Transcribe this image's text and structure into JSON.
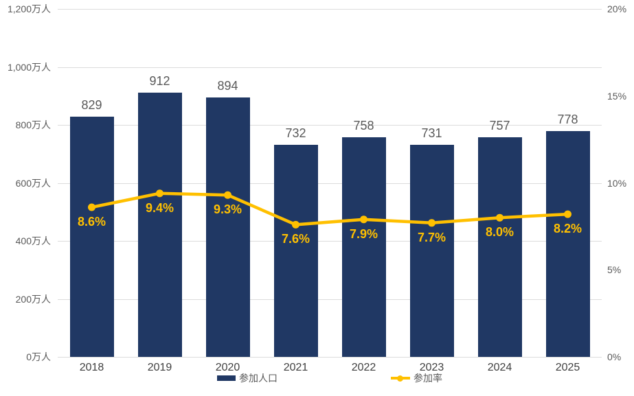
{
  "chart_data": {
    "type": "combo-bar-line",
    "categories": [
      "2018",
      "2019",
      "2020",
      "2021",
      "2022",
      "2023",
      "2024",
      "2025"
    ],
    "series": [
      {
        "name": "参加人口",
        "type": "bar",
        "color": "#203864",
        "axis": "left",
        "unit": "万人",
        "values": [
          829,
          912,
          894,
          732,
          758,
          731,
          757,
          778
        ]
      },
      {
        "name": "参加率",
        "type": "line",
        "color": "#FFC000",
        "axis": "right",
        "unit": "%",
        "values": [
          8.6,
          9.4,
          9.3,
          7.6,
          7.9,
          7.7,
          8.0,
          8.2
        ]
      }
    ],
    "bar_labels": [
      "829",
      "912",
      "894",
      "732",
      "758",
      "731",
      "757",
      "778"
    ],
    "line_labels": [
      "8.6%",
      "9.4%",
      "9.3%",
      "7.6%",
      "7.9%",
      "7.7%",
      "8.0%",
      "8.2%"
    ],
    "left_axis": {
      "min": 0,
      "max": 1200,
      "tick_step": 200,
      "ticks": [
        "1,200万人",
        "1,000万人",
        "800万人",
        "600万人",
        "400万人",
        "200万人",
        "0万人"
      ]
    },
    "right_axis": {
      "min": 0,
      "max": 20,
      "tick_step": 5,
      "ticks": [
        "20%",
        "15%",
        "10%",
        "5%",
        "0%"
      ]
    },
    "grid": true,
    "legend_position": "bottom",
    "legend": [
      {
        "label": "参加人口",
        "marker": "bar",
        "color": "#203864"
      },
      {
        "label": "参加率",
        "marker": "line-dot",
        "color": "#FFC000"
      }
    ],
    "colors": {
      "bar": "#203864",
      "line": "#FFC000",
      "gridline": "#dcdcdc",
      "axis_label": "#595959",
      "x_label": "#404040",
      "bar_value_label": "#595959",
      "background": "#ffffff"
    }
  }
}
